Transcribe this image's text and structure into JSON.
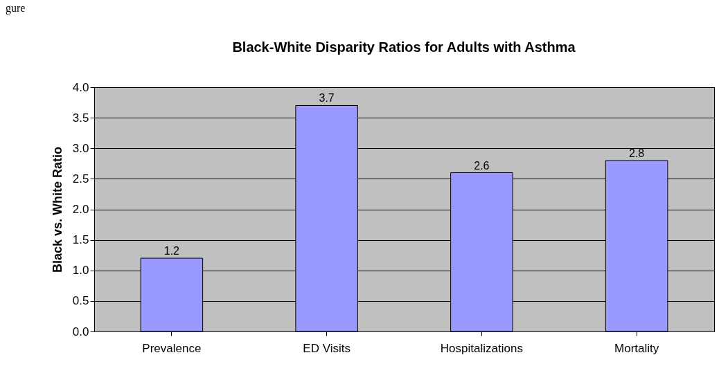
{
  "chart_data": {
    "type": "bar",
    "title": "Black-White Disparity Ratios for Adults with Asthma",
    "ylabel": "Black vs. White Ratio",
    "categories": [
      "Prevalence",
      "ED Visits",
      "Hospitalizations",
      "Mortality"
    ],
    "values": [
      1.2,
      3.7,
      2.6,
      2.8
    ],
    "color": "#9999ff",
    "data_labels": true,
    "ylim": [
      0,
      4
    ],
    "yticks": [
      {
        "value": 0,
        "label": "0.0"
      },
      {
        "value": 0.5,
        "label": "0.5"
      },
      {
        "value": 1,
        "label": "1.0"
      },
      {
        "value": 1.5,
        "label": "1.5"
      },
      {
        "value": 2,
        "label": "2.0"
      },
      {
        "value": 2.5,
        "label": "2.5"
      },
      {
        "value": 3,
        "label": "3.0"
      },
      {
        "value": 3.5,
        "label": "3.5"
      },
      {
        "value": 4,
        "label": "4.0"
      }
    ],
    "grid": "y",
    "annotations": [
      "gure"
    ]
  }
}
